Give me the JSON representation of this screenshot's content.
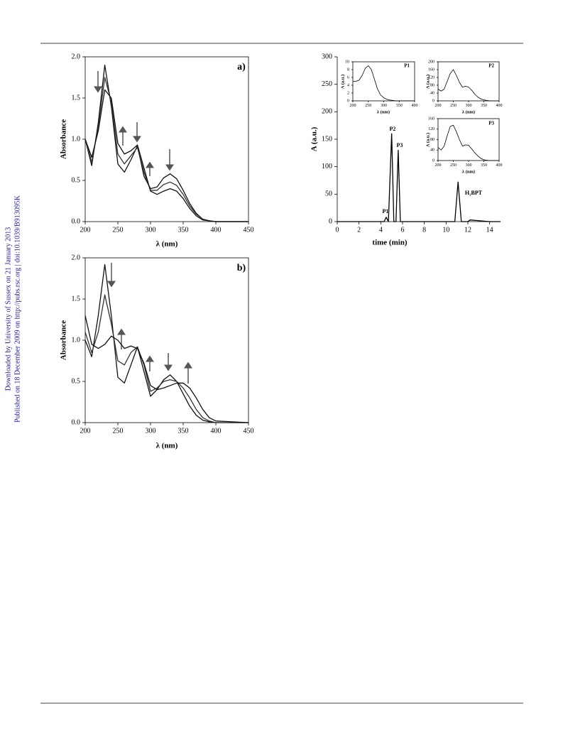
{
  "watermark": [
    "Downloaded by University of Sussex on 21 January 2013",
    "Published on 18 December 2009 on http://pubs.rsc.org | doi:10.1039/B913095K"
  ],
  "chart_data": [
    {
      "type": "line",
      "panel_label": "a)",
      "xlabel": "λ (nm)",
      "ylabel": "Absorbance",
      "x": [
        200,
        210,
        220,
        230,
        240,
        250,
        260,
        270,
        280,
        290,
        300,
        310,
        320,
        330,
        340,
        350,
        360,
        370,
        380,
        390,
        400,
        450
      ],
      "xlim": [
        200,
        450
      ],
      "xticks": [
        200,
        250,
        300,
        350,
        400,
        450
      ],
      "ylim": [
        0,
        2
      ],
      "yticks": [
        {
          "value": 0,
          "label": "0.0"
        },
        0.5,
        {
          "value": 1,
          "label": "1.0"
        },
        1.5,
        {
          "value": 2,
          "label": "2.0"
        }
      ],
      "series": [
        {
          "color": "#111111",
          "values": [
            1.0,
            0.68,
            1.2,
            1.9,
            1.4,
            0.7,
            0.6,
            0.75,
            0.92,
            0.55,
            0.4,
            0.42,
            0.53,
            0.58,
            0.52,
            0.38,
            0.22,
            0.1,
            0.03,
            0.01,
            0,
            0
          ]
        },
        {
          "color": "#333333",
          "values": [
            1.0,
            0.72,
            1.15,
            1.75,
            1.45,
            0.82,
            0.7,
            0.8,
            0.9,
            0.6,
            0.38,
            0.38,
            0.45,
            0.48,
            0.44,
            0.33,
            0.19,
            0.09,
            0.03,
            0.01,
            0,
            0
          ]
        },
        {
          "color": "#111111",
          "values": [
            1.0,
            0.78,
            1.1,
            1.6,
            1.5,
            0.95,
            0.82,
            0.86,
            0.93,
            0.65,
            0.37,
            0.33,
            0.37,
            0.4,
            0.37,
            0.28,
            0.16,
            0.07,
            0.02,
            0.01,
            0,
            0
          ]
        }
      ]
    },
    {
      "type": "line",
      "panel_label": "b)",
      "xlabel": "λ (nm)",
      "ylabel": "Absorbance",
      "x": [
        200,
        210,
        220,
        230,
        240,
        250,
        260,
        270,
        280,
        290,
        300,
        310,
        320,
        330,
        340,
        350,
        360,
        370,
        380,
        390,
        400,
        450
      ],
      "xlim": [
        200,
        450
      ],
      "xticks": [
        200,
        250,
        300,
        350,
        400,
        450
      ],
      "ylim": [
        0,
        2
      ],
      "yticks": [
        {
          "value": 0,
          "label": "0.0"
        },
        0.5,
        {
          "value": 1,
          "label": "1.0"
        },
        1.5,
        {
          "value": 2,
          "label": "2.0"
        }
      ],
      "series": [
        {
          "color": "#111111",
          "values": [
            1.0,
            0.8,
            1.3,
            1.92,
            1.3,
            0.55,
            0.48,
            0.7,
            0.92,
            0.62,
            0.32,
            0.4,
            0.52,
            0.58,
            0.5,
            0.35,
            0.2,
            0.09,
            0.03,
            0.01,
            0,
            0
          ]
        },
        {
          "color": "#333333",
          "values": [
            1.1,
            0.85,
            1.1,
            1.55,
            1.2,
            0.75,
            0.7,
            0.85,
            0.92,
            0.7,
            0.38,
            0.42,
            0.5,
            0.52,
            0.5,
            0.42,
            0.3,
            0.16,
            0.06,
            0.02,
            0,
            0
          ]
        },
        {
          "color": "#111111",
          "values": [
            1.3,
            0.95,
            0.9,
            0.95,
            1.05,
            1.0,
            0.9,
            0.93,
            0.9,
            0.72,
            0.45,
            0.4,
            0.42,
            0.45,
            0.48,
            0.48,
            0.42,
            0.3,
            0.16,
            0.06,
            0.02,
            0
          ]
        }
      ]
    },
    {
      "type": "line",
      "xlabel": "time (min)",
      "ylabel": "A (a.u.)",
      "annotations": [
        "P1",
        "P2",
        "P3",
        "H₂BPT"
      ],
      "x": [
        0,
        2,
        4,
        4.3,
        4.5,
        4.7,
        5.0,
        5.2,
        5.4,
        5.6,
        5.8,
        6,
        8,
        10,
        10.8,
        11.1,
        11.4,
        12,
        12.2,
        14,
        15
      ],
      "xlim": [
        0,
        15
      ],
      "xticks": [
        0,
        2,
        4,
        6,
        8,
        10,
        12,
        14
      ],
      "ylim": [
        0,
        300
      ],
      "yticks": [
        0,
        50,
        100,
        150,
        200,
        250,
        300
      ],
      "series": [
        {
          "color": "#000000",
          "values": [
            0,
            0,
            0,
            0,
            8,
            0,
            160,
            0,
            0,
            130,
            0,
            0,
            0,
            0,
            0,
            72,
            0,
            0,
            3,
            0,
            0
          ]
        }
      ]
    },
    {
      "type": "line",
      "title": "P1",
      "xlabel": "λ (nm)",
      "ylabel": "A (a.u.)",
      "x": [
        200,
        210,
        220,
        230,
        240,
        250,
        260,
        270,
        280,
        290,
        300,
        310,
        320,
        330,
        340,
        350,
        360,
        370,
        380,
        390,
        400
      ],
      "xlim": [
        200,
        400
      ],
      "xticks": [
        200,
        250,
        300,
        350,
        400
      ],
      "ylim": [
        0,
        10
      ],
      "yticks": [
        0,
        2,
        4,
        6,
        8,
        10
      ],
      "series": [
        {
          "color": "#000000",
          "values": [
            5,
            5,
            5.3,
            6.5,
            8.3,
            9,
            8,
            5.5,
            3,
            1.5,
            0.8,
            0.4,
            0.2,
            0.1,
            0,
            0,
            0,
            0,
            0,
            0,
            0
          ]
        }
      ]
    },
    {
      "type": "line",
      "title": "P2",
      "xlabel": "λ (nm)",
      "ylabel": "A (a.u.)",
      "x": [
        200,
        210,
        220,
        230,
        240,
        250,
        260,
        270,
        280,
        290,
        300,
        310,
        320,
        330,
        340,
        350,
        360,
        370,
        380,
        390,
        400
      ],
      "xlim": [
        200,
        400
      ],
      "xticks": [
        200,
        250,
        300,
        350,
        400
      ],
      "ylim": [
        0,
        200
      ],
      "yticks": [
        0,
        40,
        80,
        120,
        160,
        200
      ],
      "series": [
        {
          "color": "#000000",
          "values": [
            60,
            50,
            60,
            100,
            140,
            160,
            130,
            95,
            70,
            75,
            70,
            55,
            35,
            20,
            10,
            5,
            2,
            0,
            0,
            0,
            0
          ]
        }
      ]
    },
    {
      "type": "line",
      "title": "P3",
      "xlabel": "λ (nm)",
      "ylabel": "A (a.u.)",
      "x": [
        200,
        210,
        220,
        230,
        240,
        250,
        260,
        270,
        280,
        290,
        300,
        310,
        320,
        330,
        340,
        350,
        360,
        370,
        380,
        390,
        400
      ],
      "xlim": [
        200,
        400
      ],
      "xticks": [
        200,
        250,
        300,
        350,
        400
      ],
      "ylim": [
        0,
        160
      ],
      "yticks": [
        0,
        40,
        80,
        120,
        160
      ],
      "series": [
        {
          "color": "#000000",
          "values": [
            50,
            40,
            55,
            95,
            130,
            135,
            110,
            80,
            55,
            60,
            58,
            45,
            30,
            18,
            8,
            3,
            1,
            0,
            0,
            0,
            0
          ]
        }
      ]
    }
  ]
}
